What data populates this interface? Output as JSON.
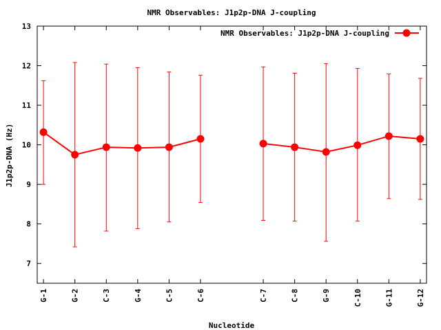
{
  "chart_data": {
    "type": "line",
    "title": "NMR Observables: J1p2p-DNA J-coupling",
    "xlabel": "Nucleotide",
    "ylabel": "J1p2p-DNA (Hz)",
    "ylim": [
      6.5,
      13
    ],
    "yticks": [
      "7",
      "8",
      "9",
      "10",
      "11",
      "12",
      "13"
    ],
    "grid": false,
    "legend_position": "top-right",
    "series": [
      {
        "name": "NMR Observables: J1p2p-DNA J-coupling",
        "color": "#ff0000",
        "segments": [
          {
            "categories": [
              "G-1",
              "G-2",
              "C-3",
              "G-4",
              "C-5",
              "C-6"
            ],
            "x": [
              1,
              2,
              3,
              4,
              5,
              6
            ],
            "values": [
              10.32,
              9.75,
              9.94,
              9.92,
              9.94,
              10.15
            ],
            "err_low": [
              9.0,
              7.42,
              7.82,
              7.88,
              8.05,
              8.54
            ],
            "err_high": [
              11.62,
              12.08,
              12.04,
              11.95,
              11.84,
              11.76
            ]
          },
          {
            "categories": [
              "C-7",
              "C-8",
              "G-9",
              "C-10",
              "G-11",
              "G-12"
            ],
            "x": [
              8,
              9,
              10,
              11,
              12,
              13
            ],
            "values": [
              10.03,
              9.94,
              9.82,
              9.99,
              10.22,
              10.15
            ],
            "err_low": [
              8.09,
              8.07,
              7.56,
              8.07,
              8.64,
              8.62
            ],
            "err_high": [
              11.97,
              11.81,
              12.05,
              11.93,
              11.79,
              11.68
            ]
          }
        ]
      }
    ]
  }
}
